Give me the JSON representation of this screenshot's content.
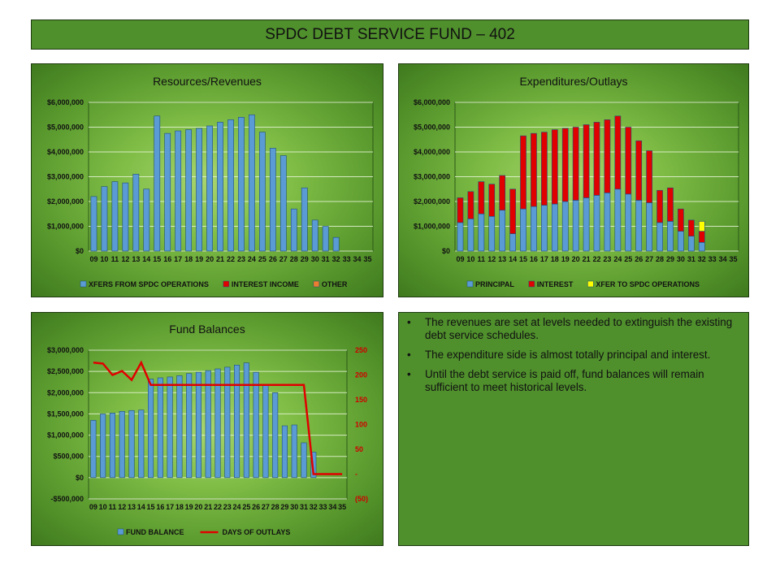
{
  "slide": {
    "title": "SPDC DEBT SERVICE FUND – 402"
  },
  "colors": {
    "blue": "#5b9bd5",
    "red": "#e00000",
    "orange": "#ed7d31",
    "yellow": "#ffff00",
    "line_red": "#e00000"
  },
  "chart_data": [
    {
      "id": "revenues",
      "type": "bar",
      "stacked": true,
      "title": "Resources/Revenues",
      "categories": [
        "09",
        "10",
        "11",
        "12",
        "13",
        "14",
        "15",
        "16",
        "17",
        "18",
        "19",
        "20",
        "21",
        "22",
        "23",
        "24",
        "25",
        "26",
        "27",
        "28",
        "29",
        "30",
        "31",
        "32",
        "33",
        "34",
        "35"
      ],
      "ylim": [
        0,
        6000000
      ],
      "yticks": [
        0,
        1000000,
        2000000,
        3000000,
        4000000,
        5000000,
        6000000
      ],
      "ytick_labels": [
        "$0",
        "$1,000,000",
        "$2,000,000",
        "$3,000,000",
        "$4,000,000",
        "$5,000,000",
        "$6,000,000"
      ],
      "series": [
        {
          "name": "XFERS FROM SPDC OPERATIONS",
          "color": "#5b9bd5",
          "values": [
            2200000,
            2600000,
            2800000,
            2750000,
            3100000,
            2500000,
            5450000,
            4750000,
            4850000,
            4900000,
            4950000,
            5050000,
            5200000,
            5300000,
            5400000,
            5500000,
            4800000,
            4150000,
            3850000,
            1700000,
            2550000,
            1250000,
            1000000,
            550000,
            0,
            0,
            0
          ]
        },
        {
          "name": "INTEREST INCOME",
          "color": "#e00000",
          "values": [
            0,
            0,
            0,
            0,
            0,
            0,
            0,
            0,
            0,
            0,
            0,
            0,
            0,
            0,
            0,
            0,
            0,
            0,
            0,
            0,
            0,
            0,
            0,
            0,
            0,
            0,
            0
          ]
        },
        {
          "name": "OTHER",
          "color": "#ed7d31",
          "values": [
            0,
            0,
            0,
            0,
            0,
            0,
            0,
            0,
            0,
            0,
            0,
            0,
            0,
            0,
            0,
            0,
            0,
            0,
            0,
            0,
            0,
            0,
            0,
            0,
            0,
            0,
            0
          ]
        }
      ]
    },
    {
      "id": "expenditures",
      "type": "bar",
      "stacked": true,
      "title": "Expenditures/Outlays",
      "categories": [
        "09",
        "10",
        "11",
        "12",
        "13",
        "14",
        "15",
        "16",
        "17",
        "18",
        "19",
        "20",
        "21",
        "22",
        "23",
        "24",
        "25",
        "26",
        "27",
        "28",
        "29",
        "30",
        "31",
        "32",
        "33",
        "34",
        "35"
      ],
      "ylim": [
        0,
        6000000
      ],
      "yticks": [
        0,
        1000000,
        2000000,
        3000000,
        4000000,
        5000000,
        6000000
      ],
      "ytick_labels": [
        "$0",
        "$1,000,000",
        "$2,000,000",
        "$3,000,000",
        "$4,000,000",
        "$5,000,000",
        "$6,000,000"
      ],
      "series": [
        {
          "name": "PRINCIPAL",
          "color": "#5b9bd5",
          "values": [
            1150000,
            1300000,
            1500000,
            1400000,
            1650000,
            700000,
            1700000,
            1800000,
            1850000,
            1900000,
            2000000,
            2050000,
            2150000,
            2250000,
            2350000,
            2500000,
            2300000,
            2050000,
            1950000,
            1150000,
            1200000,
            800000,
            600000,
            350000,
            0,
            0,
            0
          ]
        },
        {
          "name": "INTEREST",
          "color": "#e00000",
          "values": [
            1000000,
            1100000,
            1300000,
            1300000,
            1400000,
            1800000,
            2950000,
            2950000,
            2950000,
            3000000,
            2950000,
            2950000,
            2950000,
            2950000,
            2950000,
            2950000,
            2700000,
            2400000,
            2100000,
            1300000,
            1350000,
            900000,
            650000,
            450000,
            0,
            0,
            0
          ]
        },
        {
          "name": "XFER TO SPDC OPERATIONS",
          "color": "#ffff00",
          "values": [
            0,
            0,
            0,
            0,
            0,
            0,
            0,
            0,
            0,
            0,
            0,
            0,
            0,
            0,
            0,
            0,
            0,
            0,
            0,
            0,
            0,
            0,
            0,
            400000,
            0,
            0,
            0
          ]
        }
      ]
    },
    {
      "id": "balances",
      "type": "bar+line",
      "title": "Fund Balances",
      "categories": [
        "09",
        "10",
        "11",
        "12",
        "13",
        "14",
        "15",
        "16",
        "17",
        "18",
        "19",
        "20",
        "21",
        "22",
        "23",
        "24",
        "25",
        "26",
        "27",
        "28",
        "29",
        "30",
        "31",
        "32",
        "33",
        "34",
        "35"
      ],
      "ylim": [
        -500000,
        3000000
      ],
      "yticks": [
        -500000,
        0,
        500000,
        1000000,
        1500000,
        2000000,
        2500000,
        3000000
      ],
      "ytick_labels": [
        "-$500,000",
        "$0",
        "$500,000",
        "$1,000,000",
        "$1,500,000",
        "$2,000,000",
        "$2,500,000",
        "$3,000,000"
      ],
      "y2lim": [
        -50,
        250
      ],
      "y2ticks": [
        -50,
        0,
        50,
        100,
        150,
        200,
        250
      ],
      "y2tick_labels": [
        "(50)",
        "-",
        "50",
        "100",
        "150",
        "200",
        "250"
      ],
      "series": [
        {
          "name": "FUND BALANCE",
          "type": "bar",
          "axis": "left",
          "color": "#5b9bd5",
          "values": [
            1350000,
            1500000,
            1520000,
            1560000,
            1580000,
            1590000,
            2320000,
            2350000,
            2370000,
            2400000,
            2450000,
            2480000,
            2520000,
            2560000,
            2600000,
            2650000,
            2700000,
            2480000,
            2200000,
            2000000,
            1220000,
            1240000,
            820000,
            600000,
            null,
            null,
            null
          ]
        },
        {
          "name": "DAYS OF OUTLAYS",
          "type": "line",
          "axis": "right",
          "color": "#e00000",
          "values": [
            225,
            223,
            200,
            208,
            190,
            225,
            180,
            180,
            180,
            180,
            180,
            180,
            180,
            180,
            180,
            180,
            180,
            180,
            180,
            180,
            180,
            180,
            180,
            0,
            0,
            0,
            0
          ]
        }
      ]
    }
  ],
  "notes": {
    "bullets": [
      "The revenues are set at levels needed to extinguish the existing debt service schedules.",
      "The expenditure side is almost totally principal and interest.",
      "Until the debt service is paid off, fund balances will remain sufficient to meet historical levels."
    ]
  }
}
